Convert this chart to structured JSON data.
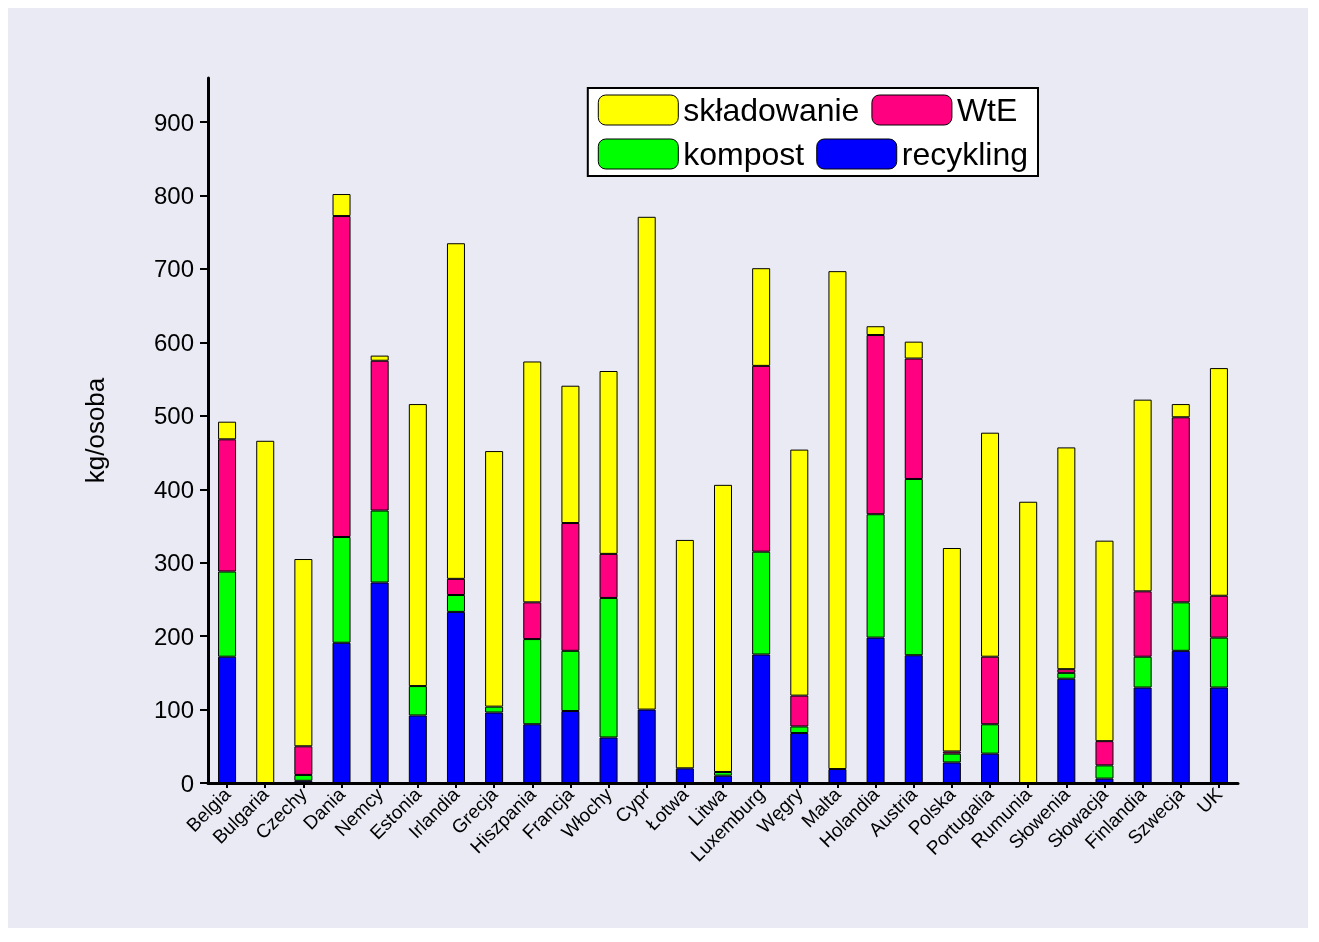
{
  "chart_data": {
    "type": "bar",
    "stacked": true,
    "ylabel": "kg/osoba",
    "categories": [
      "Belgia",
      "Bulgaria",
      "Czechy",
      "Dania",
      "Nemcy",
      "Estonia",
      "Irlandia",
      "Grecja",
      "Hiszpania",
      "Francja",
      "Włochy",
      "Cypr",
      "Łotwa",
      "Litwa",
      "Luxemburg",
      "Węgry",
      "Malta",
      "Holandia",
      "Austria",
      "Polska",
      "Portugalia",
      "Rumunia",
      "Słowenia",
      "Słowacja",
      "Finlandia",
      "Szwecja",
      "UK"
    ],
    "series": [
      {
        "name": "recykling",
        "color": "#0000ff",
        "values": [
          172,
          0,
          3,
          191,
          273,
          92,
          233,
          96,
          80,
          98,
          62,
          100,
          20,
          10,
          175,
          68,
          19,
          198,
          174,
          28,
          40,
          0,
          142,
          6,
          130,
          180,
          130
        ]
      },
      {
        "name": "kompost",
        "color": "#00ff00",
        "values": [
          116,
          0,
          8,
          144,
          98,
          40,
          23,
          8,
          116,
          82,
          190,
          0,
          0,
          5,
          140,
          9,
          0,
          168,
          240,
          12,
          40,
          0,
          8,
          18,
          42,
          66,
          68
        ]
      },
      {
        "name": "WtE",
        "color": "#ff0080",
        "values": [
          180,
          0,
          39,
          437,
          204,
          0,
          22,
          null,
          50,
          174,
          60,
          0,
          0,
          0,
          253,
          42,
          0,
          244,
          164,
          3,
          92,
          0,
          5,
          33,
          89,
          252,
          57
        ]
      },
      {
        "name": "składowanie",
        "color": "#ffff00",
        "values": [
          24,
          466,
          255,
          30,
          7,
          384,
          457,
          348,
          328,
          187,
          249,
          671,
          311,
          391,
          133,
          335,
          678,
          12,
          23,
          277,
          305,
          383,
          302,
          273,
          261,
          18,
          310
        ]
      }
    ],
    "ylim": [
      0,
      960
    ],
    "yticks": [
      0,
      100,
      200,
      300,
      400,
      500,
      600,
      700,
      800,
      900
    ],
    "grid": false,
    "legend": "top right"
  }
}
